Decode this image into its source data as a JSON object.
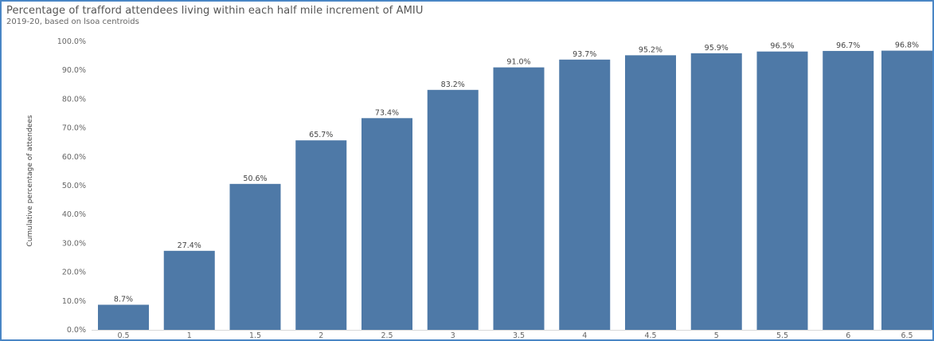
{
  "chart_data": {
    "type": "bar",
    "title": "Percentage of trafford attendees living within each half mile increment of AMIU",
    "subtitle": "2019-20, based on lsoa centroids",
    "xlabel": "",
    "ylabel": "Cumulative percentage of attendees",
    "categories": [
      "0.5",
      "1",
      "1.5",
      "2",
      "2.5",
      "3",
      "3.5",
      "4",
      "4.5",
      "5",
      "5.5",
      "6",
      "6.5"
    ],
    "values": [
      8.7,
      27.4,
      50.6,
      65.7,
      73.4,
      83.2,
      91.0,
      93.7,
      95.2,
      95.9,
      96.5,
      96.7,
      96.8
    ],
    "data_labels": [
      "8.7%",
      "27.4%",
      "50.6%",
      "65.7%",
      "73.4%",
      "83.2%",
      "91.0%",
      "93.7%",
      "95.2%",
      "95.9%",
      "96.5%",
      "96.7%",
      "96.8%"
    ],
    "y_ticks": [
      "0.0%",
      "10.0%",
      "20.0%",
      "30.0%",
      "40.0%",
      "50.0%",
      "60.0%",
      "70.0%",
      "80.0%",
      "90.0%",
      "100.0%"
    ],
    "ylim": [
      0,
      100
    ],
    "grid": false,
    "bar_color": "#4e79a7"
  }
}
